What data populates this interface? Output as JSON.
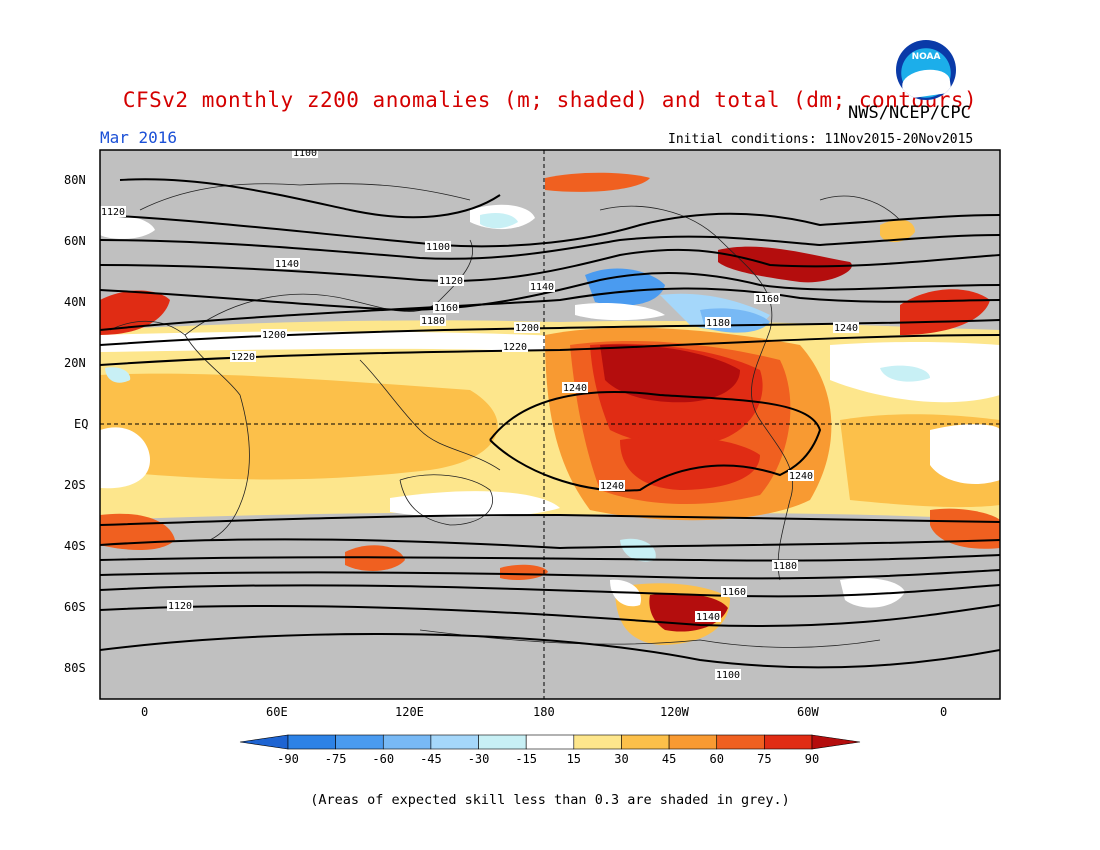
{
  "title": "CFSv2 monthly z200 anomalies (m; shaded) and total (dm; contours)",
  "brand": "NWS/NCEP/CPC",
  "logo_label": "NOAA",
  "month_label": "Mar 2016",
  "initial_conditions": "Initial conditions: 11Nov2015-20Nov2015",
  "lat_labels": [
    "80N",
    "60N",
    "40N",
    "20N",
    "EQ",
    "20S",
    "40S",
    "60S",
    "80S"
  ],
  "lon_labels": [
    "0",
    "60E",
    "120E",
    "180",
    "120W",
    "60W",
    "0"
  ],
  "colorbar": {
    "labels": [
      "-90",
      "-75",
      "-60",
      "-45",
      "-30",
      "-15",
      "15",
      "30",
      "45",
      "60",
      "75",
      "90"
    ],
    "colors": [
      "#1e64d2",
      "#2d82e6",
      "#4a9bf0",
      "#78b9f5",
      "#a5d7fa",
      "#c8f0f5",
      "#ffffff",
      "#fde68c",
      "#fcc04a",
      "#f89a32",
      "#f06020",
      "#e02c14",
      "#b40d0d"
    ]
  },
  "contour_labels": [
    "1100",
    "1120",
    "1140",
    "1160",
    "1180",
    "1200",
    "1220",
    "1240",
    "1100",
    "1120",
    "1140",
    "1160",
    "1180",
    "1200",
    "1220",
    "1240",
    "1240",
    "1240",
    "1180",
    "1160",
    "1140",
    "1120",
    "1100"
  ],
  "note": "(Areas of expected skill less than 0.3 are shaded in grey.)"
}
